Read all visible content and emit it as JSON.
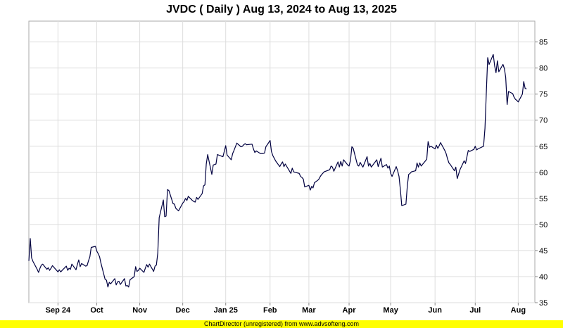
{
  "chart_data": {
    "type": "line",
    "title": "JVDC ( Daily ) Aug 13, 2024 to Aug 13, 2025",
    "xlabel": "",
    "ylabel": "",
    "ylim": [
      35,
      89
    ],
    "y_ticks": [
      35,
      40,
      45,
      50,
      55,
      60,
      65,
      70,
      75,
      80,
      85
    ],
    "grid": true,
    "x_range": [
      "2024-08-13",
      "2025-08-13"
    ],
    "x_ticks": [
      {
        "label": "Sep 24",
        "date": "2024-09-03"
      },
      {
        "label": "Oct",
        "date": "2024-10-01"
      },
      {
        "label": "Nov",
        "date": "2024-11-01"
      },
      {
        "label": "Dec",
        "date": "2024-12-02"
      },
      {
        "label": "Jan 25",
        "date": "2025-01-02"
      },
      {
        "label": "Feb",
        "date": "2025-02-03"
      },
      {
        "label": "Mar",
        "date": "2025-03-03"
      },
      {
        "label": "Apr",
        "date": "2025-04-01"
      },
      {
        "label": "May",
        "date": "2025-05-01"
      },
      {
        "label": "Jun",
        "date": "2025-06-02"
      },
      {
        "label": "Jul",
        "date": "2025-07-01"
      },
      {
        "label": "Aug",
        "date": "2025-08-01"
      }
    ],
    "series": [
      {
        "color": "#000040",
        "points": [
          [
            "2024-08-13",
            43.0
          ],
          [
            "2024-08-14",
            47.3
          ],
          [
            "2024-08-15",
            43.6
          ],
          [
            "2024-08-16",
            42.9
          ],
          [
            "2024-08-19",
            41.4
          ],
          [
            "2024-08-20",
            40.8
          ],
          [
            "2024-08-21",
            41.6
          ],
          [
            "2024-08-22",
            42.2
          ],
          [
            "2024-08-23",
            42.4
          ],
          [
            "2024-08-26",
            41.4
          ],
          [
            "2024-08-27",
            41.7
          ],
          [
            "2024-08-28",
            41.2
          ],
          [
            "2024-08-29",
            41.6
          ],
          [
            "2024-08-30",
            42.1
          ],
          [
            "2024-09-03",
            40.9
          ],
          [
            "2024-09-04",
            41.3
          ],
          [
            "2024-09-05",
            40.9
          ],
          [
            "2024-09-06",
            41.2
          ],
          [
            "2024-09-09",
            42.0
          ],
          [
            "2024-09-10",
            41.2
          ],
          [
            "2024-09-11",
            41.6
          ],
          [
            "2024-09-12",
            41.4
          ],
          [
            "2024-09-13",
            42.4
          ],
          [
            "2024-09-16",
            41.3
          ],
          [
            "2024-09-17",
            42.3
          ],
          [
            "2024-09-18",
            43.2
          ],
          [
            "2024-09-19",
            41.9
          ],
          [
            "2024-09-20",
            42.5
          ],
          [
            "2024-09-23",
            42.0
          ],
          [
            "2024-09-24",
            42.1
          ],
          [
            "2024-09-25",
            43.0
          ],
          [
            "2024-09-26",
            43.8
          ],
          [
            "2024-09-27",
            45.6
          ],
          [
            "2024-09-30",
            45.8
          ],
          [
            "2024-10-01",
            44.9
          ],
          [
            "2024-10-02",
            44.4
          ],
          [
            "2024-10-03",
            43.8
          ],
          [
            "2024-10-04",
            42.6
          ],
          [
            "2024-10-07",
            39.5
          ],
          [
            "2024-10-08",
            39.3
          ],
          [
            "2024-10-09",
            38.0
          ],
          [
            "2024-10-10",
            38.9
          ],
          [
            "2024-10-11",
            38.6
          ],
          [
            "2024-10-14",
            39.6
          ],
          [
            "2024-10-15",
            38.4
          ],
          [
            "2024-10-16",
            39.0
          ],
          [
            "2024-10-17",
            39.1
          ],
          [
            "2024-10-18",
            38.5
          ],
          [
            "2024-10-21",
            39.6
          ],
          [
            "2024-10-22",
            38.2
          ],
          [
            "2024-10-23",
            38.3
          ],
          [
            "2024-10-24",
            38.0
          ],
          [
            "2024-10-25",
            39.4
          ],
          [
            "2024-10-28",
            40.0
          ],
          [
            "2024-10-29",
            41.9
          ],
          [
            "2024-10-30",
            41.0
          ],
          [
            "2024-10-31",
            41.2
          ],
          [
            "2024-11-01",
            41.6
          ],
          [
            "2024-11-04",
            40.8
          ],
          [
            "2024-11-05",
            41.6
          ],
          [
            "2024-11-06",
            42.3
          ],
          [
            "2024-11-07",
            41.8
          ],
          [
            "2024-11-08",
            42.4
          ],
          [
            "2024-11-11",
            41.0
          ],
          [
            "2024-11-12",
            42.0
          ],
          [
            "2024-11-13",
            42.2
          ],
          [
            "2024-11-14",
            44.5
          ],
          [
            "2024-11-15",
            51.3
          ],
          [
            "2024-11-18",
            54.7
          ],
          [
            "2024-11-19",
            51.5
          ],
          [
            "2024-11-20",
            51.6
          ],
          [
            "2024-11-21",
            56.7
          ],
          [
            "2024-11-22",
            56.5
          ],
          [
            "2024-11-25",
            54.0
          ],
          [
            "2024-11-26",
            53.9
          ],
          [
            "2024-11-27",
            53.1
          ],
          [
            "2024-11-29",
            52.6
          ],
          [
            "2024-12-02",
            54.1
          ],
          [
            "2024-12-03",
            54.4
          ],
          [
            "2024-12-04",
            55.0
          ],
          [
            "2024-12-05",
            54.6
          ],
          [
            "2024-12-06",
            55.4
          ],
          [
            "2024-12-09",
            54.6
          ],
          [
            "2024-12-10",
            54.4
          ],
          [
            "2024-12-11",
            54.3
          ],
          [
            "2024-12-12",
            55.2
          ],
          [
            "2024-12-13",
            54.8
          ],
          [
            "2024-12-16",
            55.9
          ],
          [
            "2024-12-17",
            57.4
          ],
          [
            "2024-12-18",
            57.6
          ],
          [
            "2024-12-19",
            61.6
          ],
          [
            "2024-12-20",
            63.4
          ],
          [
            "2024-12-23",
            59.6
          ],
          [
            "2024-12-24",
            61.4
          ],
          [
            "2024-12-26",
            61.6
          ],
          [
            "2024-12-27",
            63.4
          ],
          [
            "2024-12-30",
            63.1
          ],
          [
            "2024-12-31",
            63.0
          ],
          [
            "2025-01-02",
            65.1
          ],
          [
            "2025-01-03",
            63.3
          ],
          [
            "2025-01-06",
            62.4
          ],
          [
            "2025-01-07",
            63.6
          ],
          [
            "2025-01-08",
            64.2
          ],
          [
            "2025-01-10",
            65.6
          ],
          [
            "2025-01-13",
            64.9
          ],
          [
            "2025-01-14",
            65.0
          ],
          [
            "2025-01-15",
            65.3
          ],
          [
            "2025-01-16",
            65.5
          ],
          [
            "2025-01-17",
            65.3
          ],
          [
            "2025-01-21",
            65.4
          ],
          [
            "2025-01-22",
            64.5
          ],
          [
            "2025-01-23",
            63.8
          ],
          [
            "2025-01-24",
            64.1
          ],
          [
            "2025-01-27",
            63.6
          ],
          [
            "2025-01-28",
            63.6
          ],
          [
            "2025-01-29",
            63.6
          ],
          [
            "2025-01-30",
            63.7
          ],
          [
            "2025-01-31",
            64.9
          ],
          [
            "2025-02-03",
            66.1
          ],
          [
            "2025-02-04",
            64.0
          ],
          [
            "2025-02-05",
            63.2
          ],
          [
            "2025-02-06",
            62.7
          ],
          [
            "2025-02-07",
            62.2
          ],
          [
            "2025-02-10",
            61.1
          ],
          [
            "2025-02-11",
            61.6
          ],
          [
            "2025-02-12",
            62.0
          ],
          [
            "2025-02-13",
            61.1
          ],
          [
            "2025-02-14",
            61.6
          ],
          [
            "2025-02-18",
            59.8
          ],
          [
            "2025-02-19",
            60.8
          ],
          [
            "2025-02-20",
            60.1
          ],
          [
            "2025-02-21",
            60.0
          ],
          [
            "2025-02-24",
            59.8
          ],
          [
            "2025-02-25",
            59.2
          ],
          [
            "2025-02-26",
            59.0
          ],
          [
            "2025-02-27",
            58.7
          ],
          [
            "2025-02-28",
            57.2
          ],
          [
            "2025-03-03",
            57.5
          ],
          [
            "2025-03-04",
            56.6
          ],
          [
            "2025-03-05",
            57.3
          ],
          [
            "2025-03-06",
            57.0
          ],
          [
            "2025-03-07",
            58.0
          ],
          [
            "2025-03-10",
            58.6
          ],
          [
            "2025-03-11",
            59.1
          ],
          [
            "2025-03-12",
            59.5
          ],
          [
            "2025-03-13",
            59.8
          ],
          [
            "2025-03-14",
            60.1
          ],
          [
            "2025-03-17",
            60.4
          ],
          [
            "2025-03-18",
            60.5
          ],
          [
            "2025-03-19",
            61.2
          ],
          [
            "2025-03-20",
            61.0
          ],
          [
            "2025-03-21",
            60.2
          ],
          [
            "2025-03-24",
            62.0
          ],
          [
            "2025-03-25",
            61.0
          ],
          [
            "2025-03-26",
            62.1
          ],
          [
            "2025-03-27",
            61.2
          ],
          [
            "2025-03-28",
            62.4
          ],
          [
            "2025-03-31",
            61.4
          ],
          [
            "2025-04-01",
            61.2
          ],
          [
            "2025-04-02",
            62.3
          ],
          [
            "2025-04-03",
            64.9
          ],
          [
            "2025-04-04",
            64.6
          ],
          [
            "2025-04-07",
            61.4
          ],
          [
            "2025-04-08",
            61.2
          ],
          [
            "2025-04-09",
            61.9
          ],
          [
            "2025-04-10",
            61.4
          ],
          [
            "2025-04-11",
            61.0
          ],
          [
            "2025-04-14",
            63.0
          ],
          [
            "2025-04-15",
            61.2
          ],
          [
            "2025-04-16",
            61.7
          ],
          [
            "2025-04-17",
            61.0
          ],
          [
            "2025-04-21",
            62.4
          ],
          [
            "2025-04-22",
            61.1
          ],
          [
            "2025-04-23",
            61.9
          ],
          [
            "2025-04-24",
            62.7
          ],
          [
            "2025-04-25",
            61.0
          ],
          [
            "2025-04-28",
            61.5
          ],
          [
            "2025-04-29",
            60.8
          ],
          [
            "2025-04-30",
            61.2
          ],
          [
            "2025-05-01",
            59.8
          ],
          [
            "2025-05-02",
            59.2
          ],
          [
            "2025-05-05",
            61.1
          ],
          [
            "2025-05-06",
            60.3
          ],
          [
            "2025-05-07",
            59.2
          ],
          [
            "2025-05-08",
            56.7
          ],
          [
            "2025-05-09",
            53.6
          ],
          [
            "2025-05-12",
            53.9
          ],
          [
            "2025-05-13",
            57.4
          ],
          [
            "2025-05-14",
            59.6
          ],
          [
            "2025-05-15",
            59.8
          ],
          [
            "2025-05-16",
            60.1
          ],
          [
            "2025-05-19",
            60.3
          ],
          [
            "2025-05-20",
            61.8
          ],
          [
            "2025-05-21",
            61.0
          ],
          [
            "2025-05-22",
            61.8
          ],
          [
            "2025-05-23",
            61.2
          ],
          [
            "2025-05-27",
            62.5
          ],
          [
            "2025-05-28",
            65.9
          ],
          [
            "2025-05-29",
            64.8
          ],
          [
            "2025-05-30",
            65.0
          ],
          [
            "2025-06-02",
            64.5
          ],
          [
            "2025-06-03",
            65.2
          ],
          [
            "2025-06-04",
            64.6
          ],
          [
            "2025-06-05",
            65.1
          ],
          [
            "2025-06-06",
            65.7
          ],
          [
            "2025-06-09",
            64.2
          ],
          [
            "2025-06-10",
            63.6
          ],
          [
            "2025-06-11",
            62.6
          ],
          [
            "2025-06-12",
            61.8
          ],
          [
            "2025-06-13",
            61.5
          ],
          [
            "2025-06-16",
            60.3
          ],
          [
            "2025-06-17",
            61.0
          ],
          [
            "2025-06-18",
            58.8
          ],
          [
            "2025-06-20",
            60.5
          ],
          [
            "2025-06-23",
            62.2
          ],
          [
            "2025-06-24",
            61.7
          ],
          [
            "2025-06-25",
            63.0
          ],
          [
            "2025-06-26",
            64.2
          ],
          [
            "2025-06-27",
            64.0
          ],
          [
            "2025-06-30",
            64.4
          ],
          [
            "2025-07-01",
            65.0
          ],
          [
            "2025-07-02",
            64.3
          ],
          [
            "2025-07-03",
            64.5
          ],
          [
            "2025-07-07",
            65.0
          ],
          [
            "2025-07-08",
            68.4
          ],
          [
            "2025-07-09",
            75.5
          ],
          [
            "2025-07-10",
            82.0
          ],
          [
            "2025-07-11",
            80.7
          ],
          [
            "2025-07-14",
            82.6
          ],
          [
            "2025-07-15",
            80.4
          ],
          [
            "2025-07-16",
            79.1
          ],
          [
            "2025-07-17",
            81.4
          ],
          [
            "2025-07-18",
            79.3
          ],
          [
            "2025-07-21",
            80.7
          ],
          [
            "2025-07-22",
            79.9
          ],
          [
            "2025-07-23",
            78.2
          ],
          [
            "2025-07-24",
            73.0
          ],
          [
            "2025-07-25",
            75.5
          ],
          [
            "2025-07-28",
            75.1
          ],
          [
            "2025-07-29",
            74.4
          ],
          [
            "2025-07-30",
            74.0
          ],
          [
            "2025-07-31",
            73.8
          ],
          [
            "2025-08-01",
            73.5
          ],
          [
            "2025-08-04",
            75.0
          ],
          [
            "2025-08-05",
            77.4
          ],
          [
            "2025-08-06",
            76.1
          ],
          [
            "2025-08-07",
            76.0
          ]
        ]
      }
    ]
  },
  "footer": "ChartDirector (unregistered) from www.advsofteng.com"
}
